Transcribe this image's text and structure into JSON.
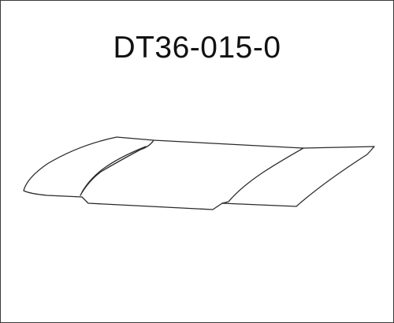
{
  "part_number": "DT36-015-0",
  "drawing": {
    "subject": "hood-outline",
    "line_color": "#2a2a2a",
    "background_color": "#ffffff"
  }
}
